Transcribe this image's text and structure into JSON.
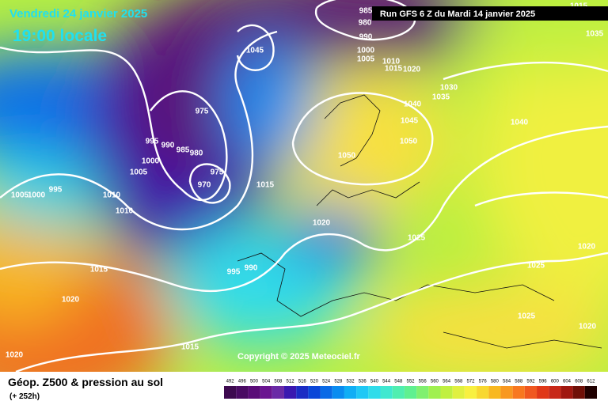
{
  "header": {
    "date": "Vendredi 24 janvier 2025",
    "time": "19:00 locale",
    "run": "Run GFS 6 Z du Mardi 14 janvier 2025"
  },
  "copyright": "Copyright © 2025 Meteociel.fr",
  "footer": {
    "title": "Géop. Z500 & pression au sol",
    "lead": "(+ 252h)"
  },
  "legend": {
    "values": [
      492,
      496,
      500,
      504,
      508,
      512,
      516,
      520,
      524,
      528,
      532,
      536,
      540,
      544,
      548,
      552,
      556,
      560,
      564,
      568,
      572,
      576,
      580,
      584,
      588,
      592,
      596,
      600,
      604,
      608,
      612
    ],
    "colors": [
      "#3d0a4f",
      "#4a0b63",
      "#5a0c78",
      "#6a1590",
      "#6a2aa6",
      "#3a18b0",
      "#1b2cc4",
      "#0a46d8",
      "#0a6ae6",
      "#0a8cf0",
      "#10aef5",
      "#20c8f5",
      "#30dcea",
      "#40e8d0",
      "#50eeb0",
      "#60f090",
      "#80f070",
      "#a0f050",
      "#c0f040",
      "#e0f040",
      "#f8f040",
      "#f8d830",
      "#f8b820",
      "#f89820",
      "#f87820",
      "#f05820",
      "#e03818",
      "#c82818",
      "#a01810",
      "#701008",
      "#200000"
    ]
  },
  "isobar_labels": [
    985,
    980,
    990,
    1000,
    1005,
    1010,
    1015,
    1020,
    1045,
    1030,
    1035,
    1040,
    1045,
    1050,
    1050,
    1040,
    975,
    995,
    990,
    985,
    980,
    1000,
    1005,
    975,
    970,
    995,
    1005,
    1000,
    1010,
    1010,
    1015,
    1020,
    1025,
    995,
    990,
    1015,
    1025,
    1020,
    1020,
    1025,
    1020,
    1015,
    1020,
    1035,
    1015
  ]
}
